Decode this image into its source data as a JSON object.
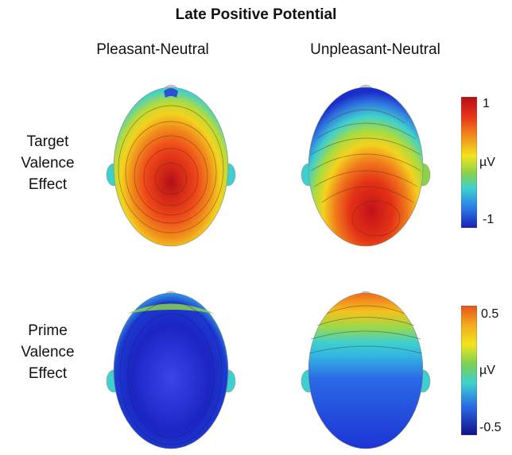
{
  "title": "Late Positive Potential",
  "columns": [
    "Pleasant-Neutral",
    "Unpleasant-Neutral"
  ],
  "rows": [
    {
      "label_lines": [
        "Target",
        "Valence",
        "Effect"
      ]
    },
    {
      "label_lines": [
        "Prime",
        "Valence",
        "Effect"
      ]
    }
  ],
  "colorbars": [
    {
      "top": "1",
      "middle": "µV",
      "bottom": "-1"
    },
    {
      "top": "0.5",
      "middle": "µV",
      "bottom": "-0.5"
    }
  ],
  "colors": {
    "red": "#d42a16",
    "orange": "#f08a1c",
    "yellow": "#f4e21e",
    "green": "#8ad24a",
    "cyan": "#3ed0cf",
    "blue": "#1a46d8",
    "deep_blue": "#1a1fb8"
  }
}
